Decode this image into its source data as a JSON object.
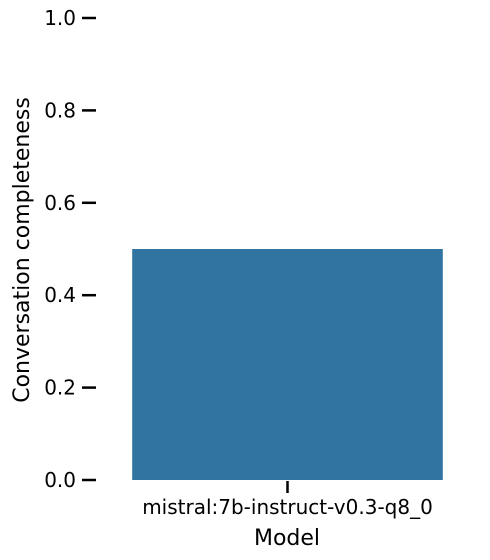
{
  "chart_data": {
    "type": "bar",
    "categories": [
      "mistral:7b-instruct-v0.3-q8_0"
    ],
    "values": [
      0.5
    ],
    "xlabel": "Model",
    "ylabel": "Conversation completeness",
    "ylim": [
      0,
      1
    ],
    "yticks": [
      "0.0",
      "0.2",
      "0.4",
      "0.6",
      "0.8",
      "1.0"
    ],
    "bar_color": "#3274a1",
    "grid": false
  }
}
